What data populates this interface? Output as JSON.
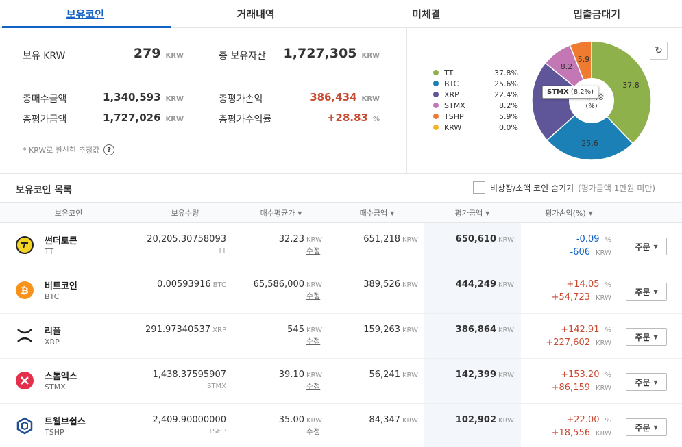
{
  "tabs": [
    "보유코인",
    "거래내역",
    "미체결",
    "입출금대기"
  ],
  "summary": {
    "krw_label": "보유 KRW",
    "krw_value": "279",
    "krw_unit": "KRW",
    "total_asset_label": "총 보유자산",
    "total_asset_value": "1,727,305",
    "total_asset_unit": "KRW",
    "total_buy_label": "총매수금액",
    "total_buy_value": "1,340,593",
    "total_buy_unit": "KRW",
    "total_pl_label": "총평가손익",
    "total_pl_value": "386,434",
    "total_pl_unit": "KRW",
    "total_eval_label": "총평가금액",
    "total_eval_value": "1,727,026",
    "total_eval_unit": "KRW",
    "total_rate_label": "총평가수익률",
    "total_rate_value": "+28.83",
    "total_rate_unit": "%",
    "note": "* KRW로 환산한 추정값",
    "help_glyph": "?"
  },
  "chart_data": {
    "type": "pie",
    "donut": true,
    "center_label": "보유비중\n(%)",
    "center_label_line1": "보유비중",
    "center_label_line2": "(%)",
    "legend_position": "left",
    "series": [
      {
        "name": "TT",
        "value": 37.8,
        "label": "37.8%",
        "slice_label": "37.8",
        "color": "#8fb14c"
      },
      {
        "name": "BTC",
        "value": 25.6,
        "label": "25.6%",
        "slice_label": "25.6",
        "color": "#1a80b6"
      },
      {
        "name": "XRP",
        "value": 22.4,
        "label": "22.4%",
        "slice_label": "",
        "color": "#5e5699"
      },
      {
        "name": "STMX",
        "value": 8.2,
        "label": "8.2%",
        "slice_label": "8.2",
        "color": "#c377b4"
      },
      {
        "name": "TSHP",
        "value": 5.9,
        "label": "5.9%",
        "slice_label": "5.9",
        "color": "#ee7b30"
      },
      {
        "name": "KRW",
        "value": 0.0,
        "label": "0.0%",
        "slice_label": "",
        "color": "#f5b32b"
      }
    ],
    "tooltip_name": "STMX",
    "tooltip_value": " (8.2%)"
  },
  "refresh_icon": "refresh-icon",
  "list": {
    "title": "보유코인 목록",
    "hide_label": "비상장/소액 코인 숨기기",
    "hide_sub": "(평가금액 1만원 미만)"
  },
  "columns": [
    "보유코인",
    "보유수량",
    "매수평균가",
    "매수금액",
    "평가금액",
    "평가손익(%)"
  ],
  "rows": [
    {
      "name": "썬더토큰",
      "symbol": "TT",
      "qty": "20,205.30758093",
      "qty_unit": "TT",
      "avg": "32.23",
      "avg_unit": "KRW",
      "edit": "수정",
      "buy": "651,218",
      "buy_unit": "KRW",
      "eval": "650,610",
      "eval_unit": "KRW",
      "rate": "-0.09",
      "rate_unit": "%",
      "pl": "-606",
      "pl_unit": "KRW",
      "sign": "neg",
      "icon_color": "#f3d321",
      "order": "주문"
    },
    {
      "name": "비트코인",
      "symbol": "BTC",
      "qty": "0.00593916",
      "qty_unit": "BTC",
      "avg": "65,586,000",
      "avg_unit": "KRW",
      "edit": "수정",
      "buy": "389,526",
      "buy_unit": "KRW",
      "eval": "444,249",
      "eval_unit": "KRW",
      "rate": "+14.05",
      "rate_unit": "%",
      "pl": "+54,723",
      "pl_unit": "KRW",
      "sign": "pos",
      "icon_color": "#f7931a",
      "order": "주문"
    },
    {
      "name": "리플",
      "symbol": "XRP",
      "qty": "291.97340537",
      "qty_unit": "XRP",
      "avg": "545",
      "avg_unit": "KRW",
      "edit": "수정",
      "buy": "159,263",
      "buy_unit": "KRW",
      "eval": "386,864",
      "eval_unit": "KRW",
      "rate": "+142.91",
      "rate_unit": "%",
      "pl": "+227,602",
      "pl_unit": "KRW",
      "sign": "pos",
      "icon_color": "#222222",
      "order": "주문"
    },
    {
      "name": "스톰엑스",
      "symbol": "STMX",
      "qty": "1,438.37595907",
      "qty_unit": "STMX",
      "avg": "39.10",
      "avg_unit": "KRW",
      "edit": "수정",
      "buy": "56,241",
      "buy_unit": "KRW",
      "eval": "142,399",
      "eval_unit": "KRW",
      "rate": "+153.20",
      "rate_unit": "%",
      "pl": "+86,159",
      "pl_unit": "KRW",
      "sign": "pos",
      "icon_color": "#e4304d",
      "order": "주문"
    },
    {
      "name": "트웰브쉽스",
      "symbol": "TSHP",
      "qty": "2,409.90000000",
      "qty_unit": "TSHP",
      "avg": "35.00",
      "avg_unit": "KRW",
      "edit": "수정",
      "buy": "84,347",
      "buy_unit": "KRW",
      "eval": "102,902",
      "eval_unit": "KRW",
      "rate": "+22.00",
      "rate_unit": "%",
      "pl": "+18,556",
      "pl_unit": "KRW",
      "sign": "pos",
      "icon_color": "#1f4f8f",
      "order": "주문"
    }
  ]
}
